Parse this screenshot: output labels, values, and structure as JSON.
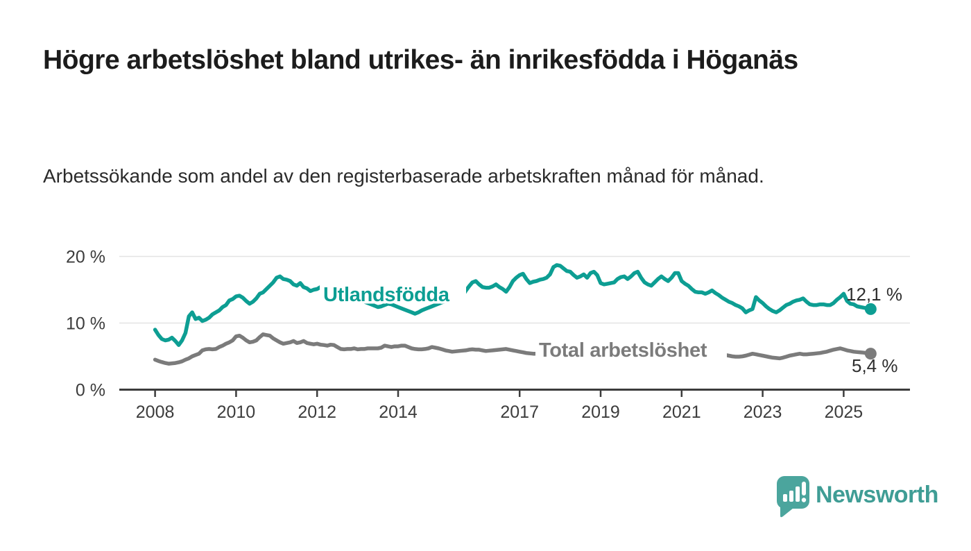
{
  "title": "Högre arbetslöshet bland utrikes- än inrikesfödda i Höganäs",
  "subtitle": "Arbetssökande som andel av den registerbaserade arbetskraften månad för månad.",
  "branding": {
    "logo_text": "Newsworthy",
    "logo_color": "#4ba59d",
    "logo_text_color": "#3f9d95"
  },
  "chart_data": {
    "type": "line",
    "x_frequency": "monthly",
    "x_start": {
      "year": 2008,
      "month": 1
    },
    "x_end": {
      "year": 2025,
      "month": 9
    },
    "x_tick_years": [
      2008,
      2010,
      2012,
      2014,
      2017,
      2019,
      2021,
      2023,
      2025
    ],
    "x_tick_labels": [
      "2008",
      "2010",
      "2012",
      "2014",
      "2017",
      "2019",
      "2021",
      "2023",
      "2025"
    ],
    "y_ticks": [
      0,
      10,
      20
    ],
    "y_tick_labels": [
      "0 %",
      "10 %",
      "20 %"
    ],
    "ylim": [
      0,
      21.5
    ],
    "grid": true,
    "colors": {
      "grid": "#e3e3e3",
      "axis": "#3c3c3c",
      "tick_text": "#3c3c3c",
      "end_label_text": "#2e2e2e"
    },
    "series": [
      {
        "name": "Utlandsfödda",
        "color": "#0d9e93",
        "end_label": "12,1 %",
        "end_value": 12.1,
        "values": [
          9.0,
          8.2,
          7.6,
          7.4,
          7.5,
          7.8,
          7.3,
          6.7,
          7.4,
          8.5,
          11.0,
          11.6,
          10.6,
          10.8,
          10.3,
          10.5,
          10.8,
          11.3,
          11.6,
          11.9,
          12.4,
          12.7,
          13.4,
          13.6,
          14.0,
          14.1,
          13.8,
          13.3,
          12.9,
          13.2,
          13.7,
          14.4,
          14.6,
          15.1,
          15.6,
          16.1,
          16.8,
          17.0,
          16.6,
          16.5,
          16.3,
          15.8,
          15.6,
          16.0,
          15.4,
          15.2,
          14.8,
          15.0,
          15.1,
          15.4,
          15.0,
          14.7,
          15.0,
          14.8,
          14.6,
          14.4,
          14.2,
          14.0,
          13.9,
          13.8,
          13.6,
          13.4,
          13.2,
          13.0,
          12.8,
          12.6,
          12.4,
          12.5,
          12.7,
          12.9,
          12.8,
          12.6,
          12.4,
          12.2,
          12.0,
          11.8,
          11.6,
          11.4,
          11.6,
          11.9,
          12.1,
          12.3,
          12.5,
          12.7,
          12.9,
          13.1,
          13.3,
          13.4,
          13.6,
          13.8,
          13.9,
          14.0,
          14.8,
          15.5,
          16.1,
          16.3,
          15.8,
          15.4,
          15.3,
          15.3,
          15.5,
          15.8,
          15.4,
          15.1,
          14.7,
          15.4,
          16.3,
          16.8,
          17.2,
          17.4,
          16.6,
          16.0,
          16.2,
          16.3,
          16.5,
          16.6,
          16.8,
          17.3,
          18.4,
          18.7,
          18.6,
          18.2,
          17.8,
          17.7,
          17.2,
          16.8,
          17.0,
          17.3,
          16.8,
          17.5,
          17.7,
          17.2,
          16.0,
          15.8,
          15.9,
          16.0,
          16.1,
          16.6,
          16.9,
          17.0,
          16.6,
          17.0,
          17.5,
          17.7,
          16.8,
          16.1,
          15.8,
          15.6,
          16.1,
          16.6,
          17.0,
          16.6,
          16.3,
          16.8,
          17.5,
          17.5,
          16.3,
          15.9,
          15.6,
          15.1,
          14.7,
          14.6,
          14.6,
          14.4,
          14.6,
          14.9,
          14.5,
          14.2,
          13.8,
          13.5,
          13.2,
          13.0,
          12.7,
          12.5,
          12.2,
          11.6,
          11.9,
          12.1,
          13.9,
          13.4,
          13.0,
          12.5,
          12.1,
          11.8,
          11.6,
          11.9,
          12.3,
          12.7,
          12.9,
          13.2,
          13.4,
          13.5,
          13.7,
          13.2,
          12.8,
          12.7,
          12.7,
          12.8,
          12.8,
          12.7,
          12.7,
          13.0,
          13.5,
          13.9,
          14.4,
          13.3,
          12.9,
          12.8,
          12.5,
          12.4,
          12.3,
          12.2,
          12.1
        ]
      },
      {
        "name": "Total arbetslöshet",
        "color": "#7b7b7b",
        "end_label": "5,4 %",
        "end_value": 5.4,
        "values": [
          4.5,
          4.3,
          4.15,
          4.0,
          3.9,
          3.95,
          4.0,
          4.1,
          4.25,
          4.5,
          4.7,
          5.0,
          5.2,
          5.4,
          5.9,
          6.05,
          6.1,
          6.05,
          6.1,
          6.4,
          6.6,
          6.9,
          7.1,
          7.4,
          8.0,
          8.1,
          7.8,
          7.4,
          7.1,
          7.2,
          7.4,
          7.9,
          8.3,
          8.2,
          8.1,
          7.7,
          7.4,
          7.1,
          6.9,
          7.0,
          7.1,
          7.3,
          7.0,
          7.1,
          7.3,
          7.0,
          6.9,
          6.8,
          6.9,
          6.75,
          6.7,
          6.6,
          6.75,
          6.7,
          6.4,
          6.1,
          6.05,
          6.1,
          6.1,
          6.2,
          6.05,
          6.1,
          6.1,
          6.2,
          6.2,
          6.2,
          6.2,
          6.3,
          6.6,
          6.5,
          6.4,
          6.5,
          6.5,
          6.6,
          6.6,
          6.4,
          6.2,
          6.1,
          6.05,
          6.05,
          6.1,
          6.2,
          6.4,
          6.3,
          6.2,
          6.05,
          5.9,
          5.8,
          5.7,
          5.75,
          5.8,
          5.85,
          5.9,
          6.0,
          6.05,
          6.0,
          6.0,
          5.9,
          5.8,
          5.85,
          5.9,
          5.95,
          6.0,
          6.05,
          6.1,
          6.0,
          5.9,
          5.8,
          5.7,
          5.6,
          5.5,
          5.45,
          5.4,
          5.4,
          5.4,
          5.45,
          5.5,
          5.55,
          5.6,
          5.6,
          5.5,
          5.45,
          5.4,
          5.35,
          5.3,
          5.3,
          5.35,
          5.4,
          5.4,
          5.35,
          5.3,
          5.3,
          5.3,
          5.35,
          5.4,
          5.45,
          5.5,
          5.55,
          5.6,
          5.6,
          5.55,
          5.6,
          5.65,
          5.7,
          5.8,
          5.9,
          6.0,
          6.3,
          6.5,
          6.5,
          6.5,
          6.45,
          6.4,
          6.35,
          6.3,
          6.3,
          6.2,
          6.15,
          6.1,
          6.0,
          5.9,
          5.8,
          5.7,
          5.6,
          5.5,
          5.45,
          5.4,
          5.3,
          5.25,
          5.2,
          5.1,
          5.0,
          4.95,
          4.95,
          5.0,
          5.1,
          5.25,
          5.4,
          5.3,
          5.2,
          5.1,
          5.0,
          4.9,
          4.8,
          4.75,
          4.7,
          4.8,
          4.95,
          5.1,
          5.2,
          5.3,
          5.4,
          5.3,
          5.3,
          5.35,
          5.4,
          5.45,
          5.5,
          5.6,
          5.7,
          5.85,
          6.0,
          6.1,
          6.2,
          6.05,
          5.9,
          5.8,
          5.7,
          5.65,
          5.6,
          5.55,
          5.45,
          5.4
        ]
      }
    ],
    "legend_position": "inline-labels"
  }
}
